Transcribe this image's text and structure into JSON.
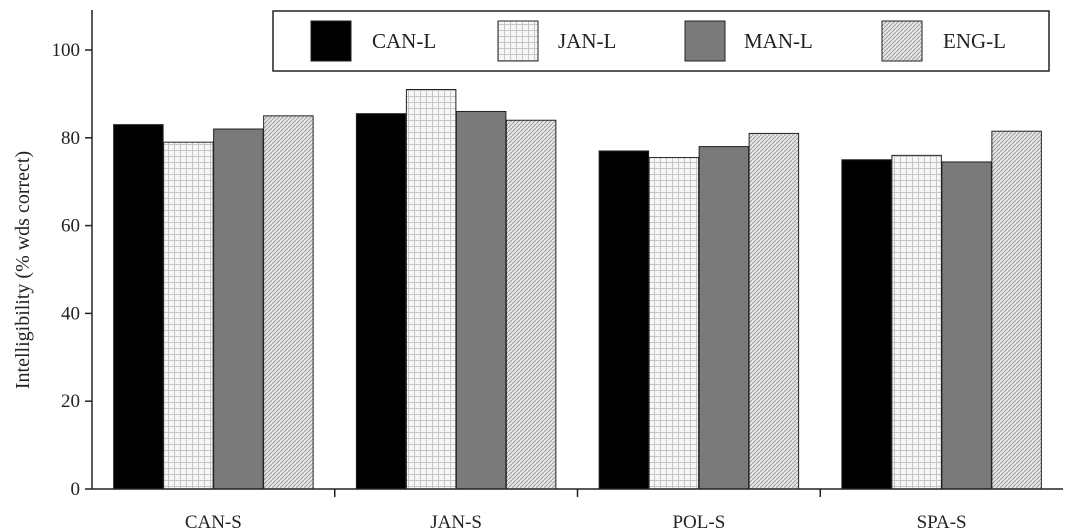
{
  "chart_data": {
    "type": "bar",
    "categories": [
      "CAN-S",
      "JAN-S",
      "POL-S",
      "SPA-S"
    ],
    "series": [
      {
        "name": "CAN-L",
        "values": [
          83,
          85.5,
          77,
          75
        ],
        "fill": "#000000",
        "pattern": "solid"
      },
      {
        "name": "JAN-L",
        "values": [
          79,
          91,
          75.5,
          76
        ],
        "fill": "#f2f2f2",
        "pattern": "light-grid"
      },
      {
        "name": "MAN-L",
        "values": [
          82,
          86,
          78,
          74.5
        ],
        "fill": "#7a7a7a",
        "pattern": "solid"
      },
      {
        "name": "ENG-L",
        "values": [
          85,
          84,
          81,
          81.5
        ],
        "fill": "#d8d8d8",
        "pattern": "fine-hatch"
      }
    ],
    "ylabel": "Intelligibility (% wds correct)",
    "ylim": [
      0,
      100
    ],
    "yticks": [
      0,
      20,
      40,
      60,
      80,
      100
    ],
    "ytick_labels": [
      "0",
      "20",
      "40",
      "60",
      "80",
      "100"
    ],
    "grid": false,
    "legend_position": "top-right"
  }
}
